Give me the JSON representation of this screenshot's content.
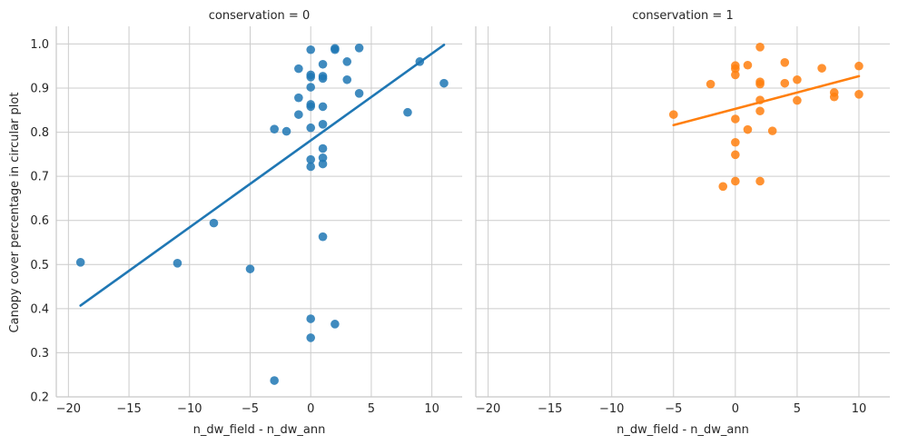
{
  "chart_data": {
    "type": "scatter",
    "xlabel": "n_dw_field - n_dw_ann",
    "ylabel": "Canopy cover percentage in circular plot",
    "xlim": [
      -21,
      12.5
    ],
    "ylim": [
      0.2,
      1.04
    ],
    "x_ticks": [
      -20,
      -15,
      -10,
      -5,
      0,
      5,
      10
    ],
    "y_ticks": [
      0.2,
      0.3,
      0.4,
      0.5,
      0.6,
      0.7,
      0.8,
      0.9,
      1.0
    ],
    "x_tick_labels": [
      "−20",
      "−15",
      "−10",
      "−5",
      "0",
      "5",
      "10"
    ],
    "y_tick_labels": [
      "0.2",
      "0.3",
      "0.4",
      "0.5",
      "0.6",
      "0.7",
      "0.8",
      "0.9",
      "1.0"
    ],
    "grid": true,
    "panels": [
      {
        "title": "conservation = 0",
        "color": "#1f77b4",
        "points": [
          [
            -19,
            0.505
          ],
          [
            -11,
            0.503
          ],
          [
            -8,
            0.594
          ],
          [
            -5,
            0.49
          ],
          [
            -3,
            0.807
          ],
          [
            -3,
            0.237
          ],
          [
            -2,
            0.802
          ],
          [
            -1,
            0.944
          ],
          [
            -1,
            0.878
          ],
          [
            -1,
            0.84
          ],
          [
            0,
            0.987
          ],
          [
            0,
            0.93
          ],
          [
            0,
            0.925
          ],
          [
            0,
            0.902
          ],
          [
            0,
            0.863
          ],
          [
            0,
            0.858
          ],
          [
            0,
            0.81
          ],
          [
            0,
            0.738
          ],
          [
            0,
            0.722
          ],
          [
            0,
            0.377
          ],
          [
            0,
            0.334
          ],
          [
            1,
            0.954
          ],
          [
            1,
            0.927
          ],
          [
            1,
            0.922
          ],
          [
            1,
            0.858
          ],
          [
            1,
            0.818
          ],
          [
            1,
            0.763
          ],
          [
            1,
            0.742
          ],
          [
            1,
            0.728
          ],
          [
            1,
            0.563
          ],
          [
            2,
            0.99
          ],
          [
            2,
            0.987
          ],
          [
            2,
            0.365
          ],
          [
            3,
            0.96
          ],
          [
            3,
            0.919
          ],
          [
            4,
            0.991
          ],
          [
            4,
            0.888
          ],
          [
            8,
            0.845
          ],
          [
            9,
            0.96
          ],
          [
            11,
            0.911
          ]
        ],
        "fit_line": {
          "x": [
            -19,
            11
          ],
          "y": [
            0.407,
            0.998
          ]
        }
      },
      {
        "title": "conservation = 1",
        "color": "#ff7f0e",
        "points": [
          [
            -5,
            0.84
          ],
          [
            -2,
            0.909
          ],
          [
            -1,
            0.677
          ],
          [
            0,
            0.951
          ],
          [
            0,
            0.944
          ],
          [
            0,
            0.93
          ],
          [
            0,
            0.83
          ],
          [
            0,
            0.777
          ],
          [
            0,
            0.749
          ],
          [
            0,
            0.689
          ],
          [
            1,
            0.952
          ],
          [
            1,
            0.806
          ],
          [
            2,
            0.993
          ],
          [
            2,
            0.914
          ],
          [
            2,
            0.909
          ],
          [
            2,
            0.873
          ],
          [
            2,
            0.848
          ],
          [
            2,
            0.689
          ],
          [
            3,
            0.803
          ],
          [
            4,
            0.958
          ],
          [
            4,
            0.911
          ],
          [
            5,
            0.919
          ],
          [
            5,
            0.872
          ],
          [
            7,
            0.945
          ],
          [
            8,
            0.89
          ],
          [
            8,
            0.88
          ],
          [
            10,
            0.95
          ],
          [
            10,
            0.886
          ]
        ],
        "fit_line": {
          "x": [
            -5,
            10
          ],
          "y": [
            0.816,
            0.927
          ]
        }
      }
    ]
  }
}
